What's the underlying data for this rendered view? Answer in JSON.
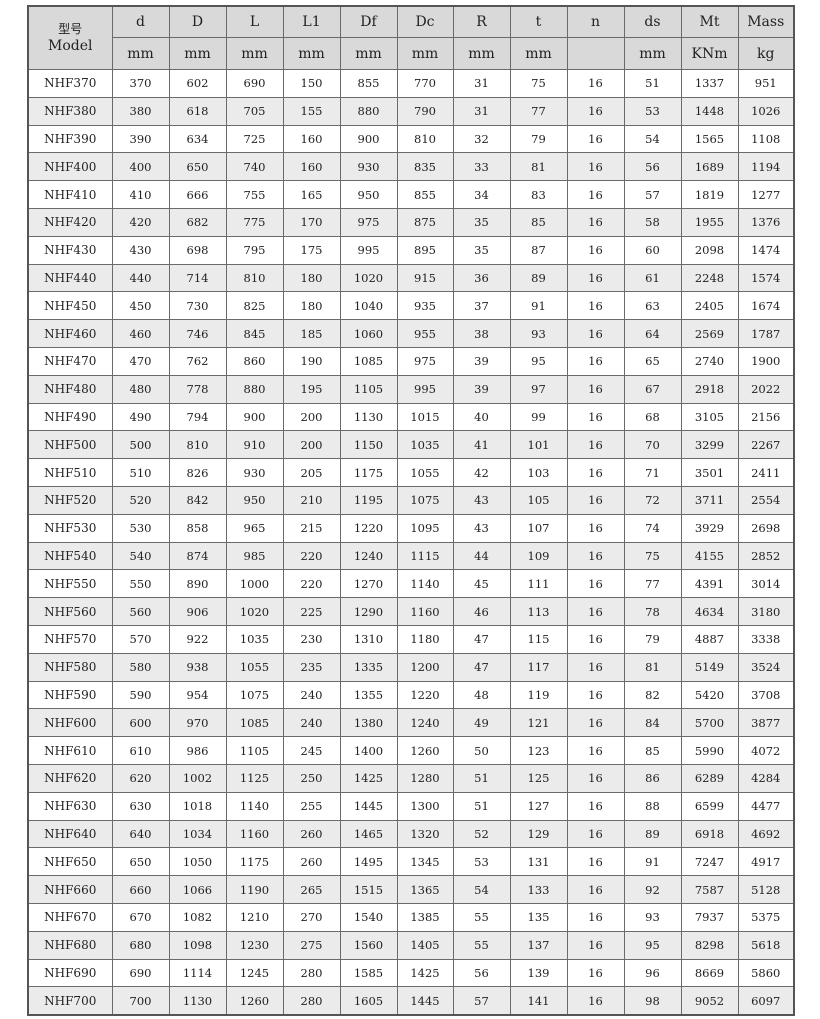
{
  "table": {
    "model_header_ko": "型号",
    "model_header_en": "Model",
    "columns": [
      {
        "name": "d",
        "unit": "mm"
      },
      {
        "name": "D",
        "unit": "mm"
      },
      {
        "name": "L",
        "unit": "mm"
      },
      {
        "name": "L1",
        "unit": "mm"
      },
      {
        "name": "Df",
        "unit": "mm"
      },
      {
        "name": "Dc",
        "unit": "mm"
      },
      {
        "name": "R",
        "unit": "mm"
      },
      {
        "name": "t",
        "unit": "mm"
      },
      {
        "name": "n",
        "unit": ""
      },
      {
        "name": "ds",
        "unit": "mm"
      },
      {
        "name": "Mt",
        "unit": "KNm"
      },
      {
        "name": "Mass",
        "unit": "kg"
      }
    ],
    "rows": [
      [
        "NHF370",
        "370",
        "602",
        "690",
        "150",
        "855",
        "770",
        "31",
        "75",
        "16",
        "51",
        "1337",
        "951"
      ],
      [
        "NHF380",
        "380",
        "618",
        "705",
        "155",
        "880",
        "790",
        "31",
        "77",
        "16",
        "53",
        "1448",
        "1026"
      ],
      [
        "NHF390",
        "390",
        "634",
        "725",
        "160",
        "900",
        "810",
        "32",
        "79",
        "16",
        "54",
        "1565",
        "1108"
      ],
      [
        "NHF400",
        "400",
        "650",
        "740",
        "160",
        "930",
        "835",
        "33",
        "81",
        "16",
        "56",
        "1689",
        "1194"
      ],
      [
        "NHF410",
        "410",
        "666",
        "755",
        "165",
        "950",
        "855",
        "34",
        "83",
        "16",
        "57",
        "1819",
        "1277"
      ],
      [
        "NHF420",
        "420",
        "682",
        "775",
        "170",
        "975",
        "875",
        "35",
        "85",
        "16",
        "58",
        "1955",
        "1376"
      ],
      [
        "NHF430",
        "430",
        "698",
        "795",
        "175",
        "995",
        "895",
        "35",
        "87",
        "16",
        "60",
        "2098",
        "1474"
      ],
      [
        "NHF440",
        "440",
        "714",
        "810",
        "180",
        "1020",
        "915",
        "36",
        "89",
        "16",
        "61",
        "2248",
        "1574"
      ],
      [
        "NHF450",
        "450",
        "730",
        "825",
        "180",
        "1040",
        "935",
        "37",
        "91",
        "16",
        "63",
        "2405",
        "1674"
      ],
      [
        "NHF460",
        "460",
        "746",
        "845",
        "185",
        "1060",
        "955",
        "38",
        "93",
        "16",
        "64",
        "2569",
        "1787"
      ],
      [
        "NHF470",
        "470",
        "762",
        "860",
        "190",
        "1085",
        "975",
        "39",
        "95",
        "16",
        "65",
        "2740",
        "1900"
      ],
      [
        "NHF480",
        "480",
        "778",
        "880",
        "195",
        "1105",
        "995",
        "39",
        "97",
        "16",
        "67",
        "2918",
        "2022"
      ],
      [
        "NHF490",
        "490",
        "794",
        "900",
        "200",
        "1130",
        "1015",
        "40",
        "99",
        "16",
        "68",
        "3105",
        "2156"
      ],
      [
        "NHF500",
        "500",
        "810",
        "910",
        "200",
        "1150",
        "1035",
        "41",
        "101",
        "16",
        "70",
        "3299",
        "2267"
      ],
      [
        "NHF510",
        "510",
        "826",
        "930",
        "205",
        "1175",
        "1055",
        "42",
        "103",
        "16",
        "71",
        "3501",
        "2411"
      ],
      [
        "NHF520",
        "520",
        "842",
        "950",
        "210",
        "1195",
        "1075",
        "43",
        "105",
        "16",
        "72",
        "3711",
        "2554"
      ],
      [
        "NHF530",
        "530",
        "858",
        "965",
        "215",
        "1220",
        "1095",
        "43",
        "107",
        "16",
        "74",
        "3929",
        "2698"
      ],
      [
        "NHF540",
        "540",
        "874",
        "985",
        "220",
        "1240",
        "1115",
        "44",
        "109",
        "16",
        "75",
        "4155",
        "2852"
      ],
      [
        "NHF550",
        "550",
        "890",
        "1000",
        "220",
        "1270",
        "1140",
        "45",
        "111",
        "16",
        "77",
        "4391",
        "3014"
      ],
      [
        "NHF560",
        "560",
        "906",
        "1020",
        "225",
        "1290",
        "1160",
        "46",
        "113",
        "16",
        "78",
        "4634",
        "3180"
      ],
      [
        "NHF570",
        "570",
        "922",
        "1035",
        "230",
        "1310",
        "1180",
        "47",
        "115",
        "16",
        "79",
        "4887",
        "3338"
      ],
      [
        "NHF580",
        "580",
        "938",
        "1055",
        "235",
        "1335",
        "1200",
        "47",
        "117",
        "16",
        "81",
        "5149",
        "3524"
      ],
      [
        "NHF590",
        "590",
        "954",
        "1075",
        "240",
        "1355",
        "1220",
        "48",
        "119",
        "16",
        "82",
        "5420",
        "3708"
      ],
      [
        "NHF600",
        "600",
        "970",
        "1085",
        "240",
        "1380",
        "1240",
        "49",
        "121",
        "16",
        "84",
        "5700",
        "3877"
      ],
      [
        "NHF610",
        "610",
        "986",
        "1105",
        "245",
        "1400",
        "1260",
        "50",
        "123",
        "16",
        "85",
        "5990",
        "4072"
      ],
      [
        "NHF620",
        "620",
        "1002",
        "1125",
        "250",
        "1425",
        "1280",
        "51",
        "125",
        "16",
        "86",
        "6289",
        "4284"
      ],
      [
        "NHF630",
        "630",
        "1018",
        "1140",
        "255",
        "1445",
        "1300",
        "51",
        "127",
        "16",
        "88",
        "6599",
        "4477"
      ],
      [
        "NHF640",
        "640",
        "1034",
        "1160",
        "260",
        "1465",
        "1320",
        "52",
        "129",
        "16",
        "89",
        "6918",
        "4692"
      ],
      [
        "NHF650",
        "650",
        "1050",
        "1175",
        "260",
        "1495",
        "1345",
        "53",
        "131",
        "16",
        "91",
        "7247",
        "4917"
      ],
      [
        "NHF660",
        "660",
        "1066",
        "1190",
        "265",
        "1515",
        "1365",
        "54",
        "133",
        "16",
        "92",
        "7587",
        "5128"
      ],
      [
        "NHF670",
        "670",
        "1082",
        "1210",
        "270",
        "1540",
        "1385",
        "55",
        "135",
        "16",
        "93",
        "7937",
        "5375"
      ],
      [
        "NHF680",
        "680",
        "1098",
        "1230",
        "275",
        "1560",
        "1405",
        "55",
        "137",
        "16",
        "95",
        "8298",
        "5618"
      ],
      [
        "NHF690",
        "690",
        "1114",
        "1245",
        "280",
        "1585",
        "1425",
        "56",
        "139",
        "16",
        "96",
        "8669",
        "5860"
      ],
      [
        "NHF700",
        "700",
        "1130",
        "1260",
        "280",
        "1605",
        "1445",
        "57",
        "141",
        "16",
        "98",
        "9052",
        "6097"
      ]
    ]
  }
}
